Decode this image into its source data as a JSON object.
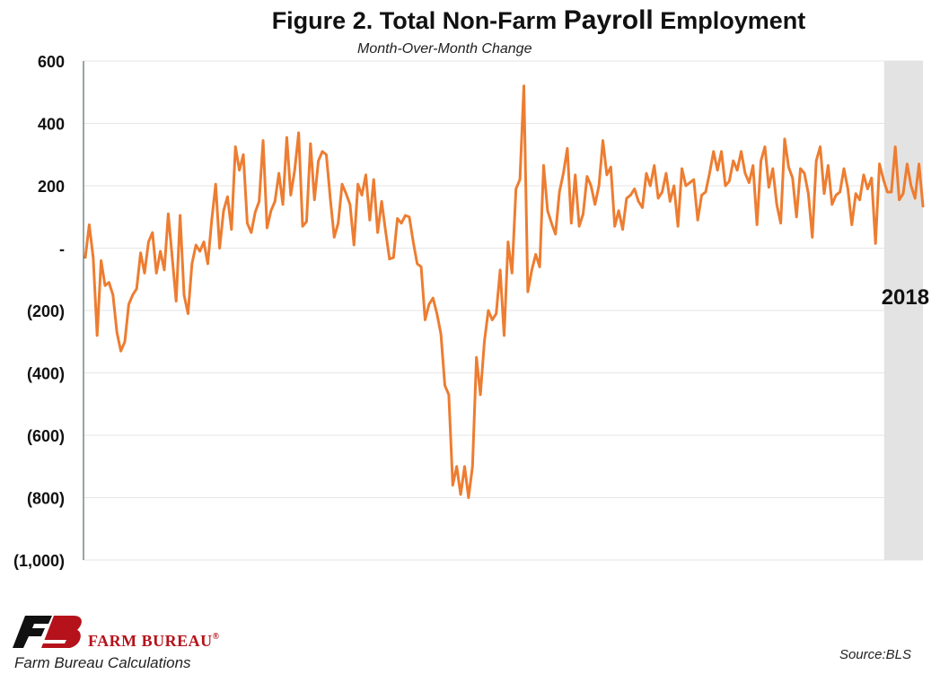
{
  "header": {
    "title_part1": "Figure 2. Total Non-Farm ",
    "title_part2": "Payroll",
    "title_part3": " Employment",
    "subtitle": "Month-Over-Month Change"
  },
  "footer": {
    "brand": "FARM BUREAU",
    "brand_mark": "®",
    "calc_note": "Farm Bureau Calculations",
    "source": "Source:BLS"
  },
  "colors": {
    "line": "#ed7d31",
    "shade": "#e3e3e3",
    "grid": "#e6e6e6",
    "logo_black": "#111111",
    "logo_red": "#b5121b"
  },
  "chart_data": {
    "type": "line",
    "title": "Figure 2. Total Non-Farm Payroll Employment",
    "subtitle": "Month-Over-Month Change",
    "xlabel": "",
    "ylabel": "",
    "ylim": [
      -1000,
      600
    ],
    "yticks": [
      600,
      400,
      200,
      0,
      -200,
      -400,
      -600,
      -800,
      -1000
    ],
    "ytick_labels": [
      "600",
      "400",
      "200",
      "-",
      "(200)",
      "(400)",
      "(600)",
      "(800)",
      "(1,000)"
    ],
    "grid": true,
    "legend": "none",
    "x_unit": "month",
    "highlight": {
      "label": "2018",
      "start_index": 204,
      "end_index": 211
    },
    "series": [
      {
        "values": [
          -30,
          75,
          -30,
          -280,
          -40,
          -120,
          -110,
          -150,
          -270,
          -330,
          -300,
          -180,
          -150,
          -130,
          -15,
          -80,
          20,
          50,
          -80,
          -10,
          -70,
          110,
          -30,
          -170,
          105,
          -150,
          -210,
          -50,
          10,
          -10,
          20,
          -50,
          90,
          205,
          0,
          120,
          165,
          60,
          325,
          250,
          300,
          80,
          50,
          115,
          150,
          345,
          65,
          120,
          150,
          240,
          140,
          355,
          170,
          250,
          370,
          70,
          85,
          335,
          155,
          280,
          310,
          300,
          160,
          35,
          80,
          205,
          175,
          140,
          10,
          205,
          170,
          235,
          90,
          220,
          50,
          150,
          55,
          -35,
          -30,
          95,
          80,
          105,
          100,
          20,
          -50,
          -60,
          -230,
          -180,
          -160,
          -210,
          -275,
          -440,
          -470,
          -760,
          -700,
          -790,
          -700,
          -800,
          -700,
          -350,
          -470,
          -300,
          -200,
          -230,
          -210,
          -70,
          -280,
          20,
          -80,
          190,
          220,
          520,
          -140,
          -70,
          -20,
          -60,
          265,
          120,
          80,
          45,
          180,
          240,
          320,
          80,
          235,
          70,
          110,
          230,
          200,
          140,
          200,
          345,
          235,
          260,
          70,
          120,
          60,
          160,
          170,
          190,
          150,
          130,
          240,
          200,
          265,
          160,
          180,
          240,
          150,
          200,
          70,
          255,
          200,
          210,
          220,
          90,
          170,
          180,
          240,
          310,
          250,
          310,
          200,
          215,
          280,
          250,
          310,
          240,
          210,
          265,
          75,
          280,
          325,
          195,
          255,
          140,
          80,
          350,
          260,
          225,
          100,
          255,
          240,
          175,
          35,
          280,
          325,
          175,
          265,
          140,
          170,
          180,
          255,
          190,
          75,
          175,
          155,
          235,
          190,
          225,
          15,
          270,
          220,
          180,
          180,
          325,
          155,
          175,
          270,
          200,
          160,
          270,
          135
        ]
      }
    ]
  }
}
